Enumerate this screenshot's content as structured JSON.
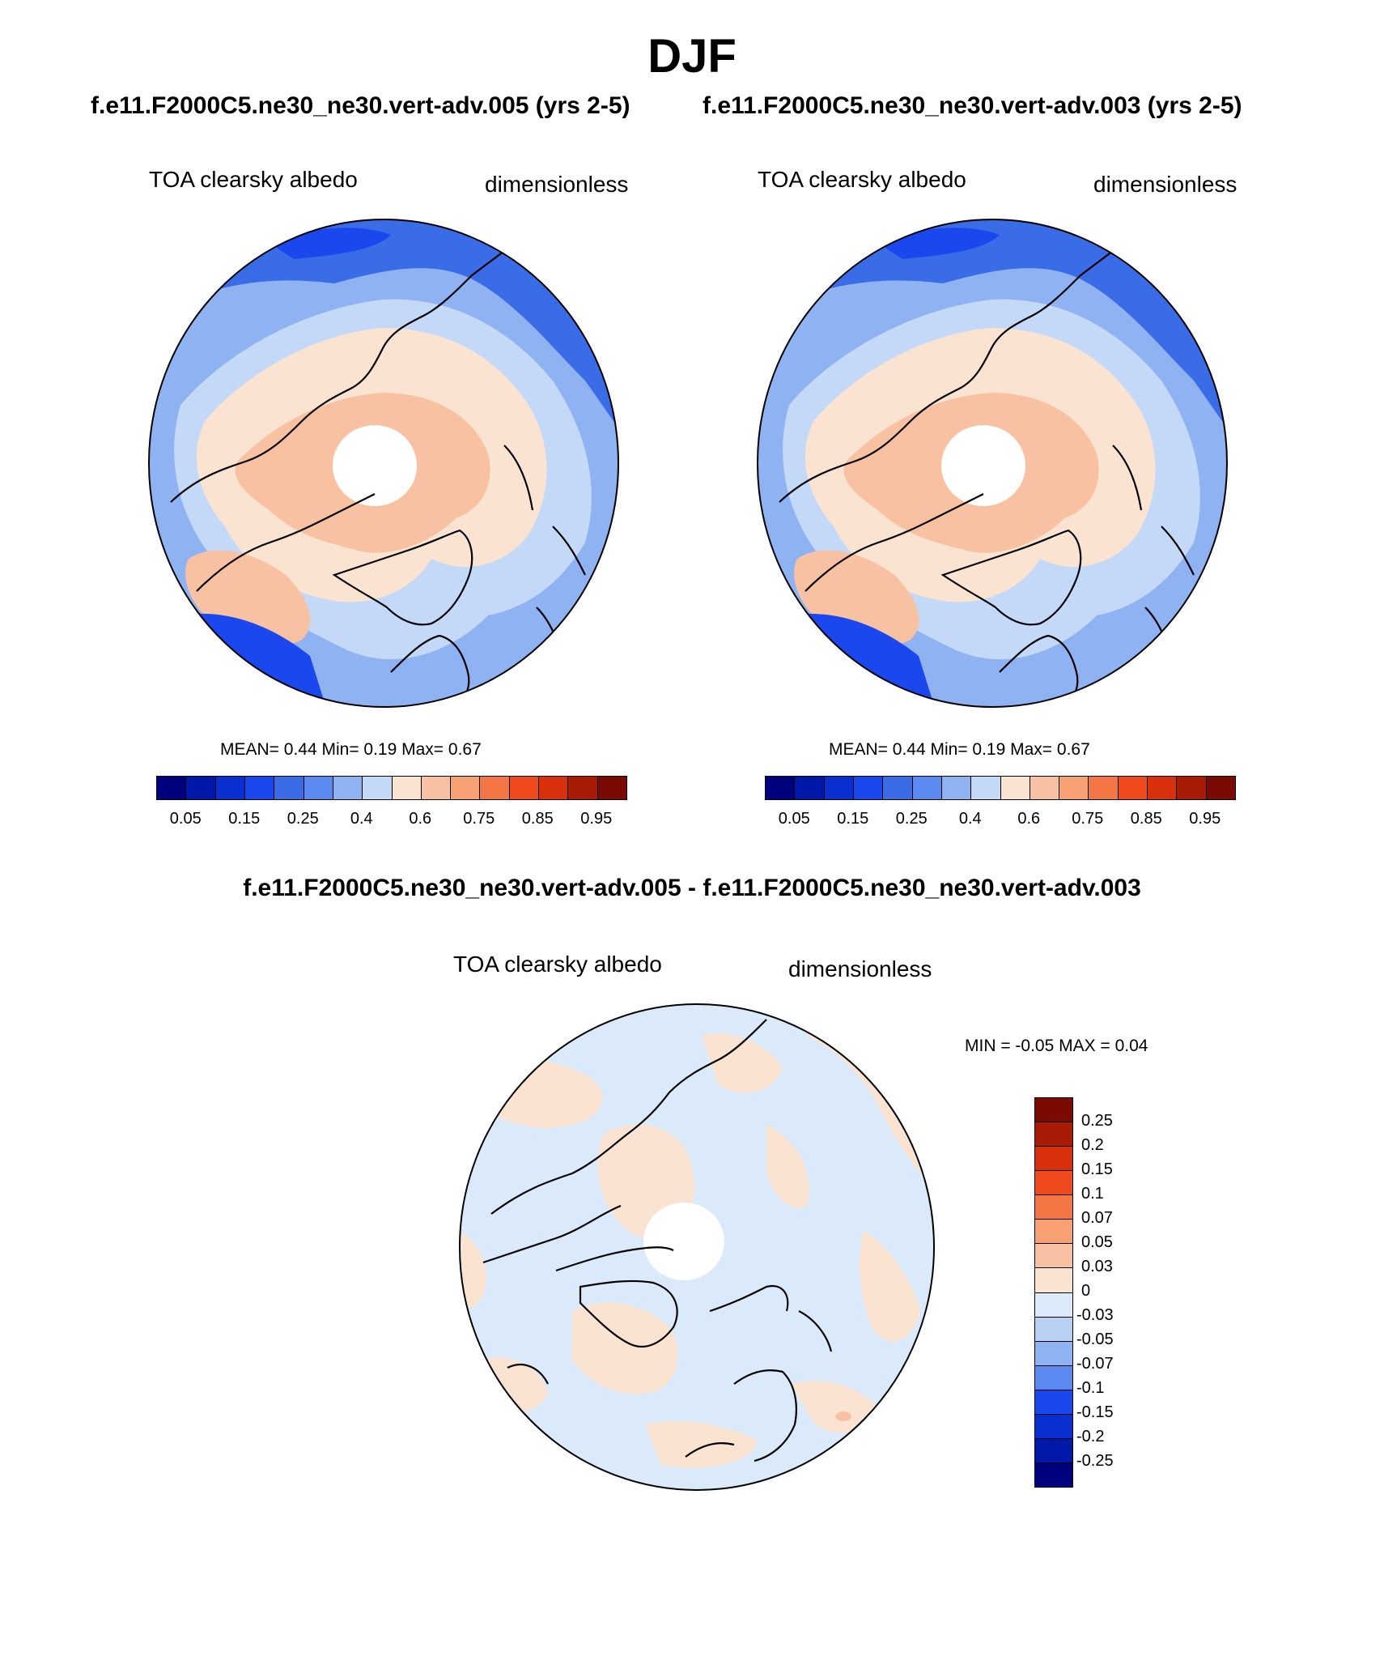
{
  "figure": {
    "season": "DJF",
    "case_a_title": "f.e11.F2000C5.ne30_ne30.vert-adv.005 (yrs 2-5)",
    "case_b_title": "f.e11.F2000C5.ne30_ne30.vert-adv.003 (yrs 2-5)",
    "diff_title": "f.e11.F2000C5.ne30_ne30.vert-adv.005 - f.e11.F2000C5.ne30_ne30.vert-adv.003"
  },
  "panels": {
    "case_a": {
      "variable": "TOA clearsky albedo",
      "units": "dimensionless",
      "stats": "MEAN=   0.44   Min=    0.19   Max=    0.67"
    },
    "case_b": {
      "variable": "TOA clearsky albedo",
      "units": "dimensionless",
      "stats": "MEAN=   0.44   Min=    0.19   Max=    0.67"
    },
    "diff": {
      "variable": "TOA clearsky albedo",
      "units": "dimensionless",
      "stats": "MIN =  -0.05 MAX =    0.04"
    }
  },
  "colorbar_main": {
    "colors": [
      "#00007e",
      "#0018a8",
      "#0a2fd0",
      "#1a48ee",
      "#3a6ce8",
      "#5a8af0",
      "#8fb2f3",
      "#c3d9f7",
      "#fbe3d2",
      "#f8c2a2",
      "#f6a074",
      "#f37644",
      "#ee4a1e",
      "#d8300c",
      "#a81c05",
      "#7a0a02"
    ],
    "tick_labels": [
      "0.05",
      "0.15",
      "0.25",
      "0.4",
      "0.6",
      "0.75",
      "0.85",
      "0.95"
    ]
  },
  "colorbar_diff": {
    "colors_top_to_bottom": [
      "#7a0a02",
      "#a81c05",
      "#d8300c",
      "#ee4a1e",
      "#f37644",
      "#f6a074",
      "#f8c2a2",
      "#fbe3d2",
      "#daeafb",
      "#b9d0f3",
      "#8fb2f3",
      "#5a8af0",
      "#1a48ee",
      "#0a2fd0",
      "#0018a8",
      "#00007e"
    ],
    "tick_labels": [
      "0.25",
      "0.2",
      "0.15",
      "0.1",
      "0.07",
      "0.05",
      "0.03",
      "0",
      "-0.03",
      "-0.05",
      "-0.07",
      "-0.1",
      "-0.15",
      "-0.2",
      "-0.25"
    ]
  }
}
